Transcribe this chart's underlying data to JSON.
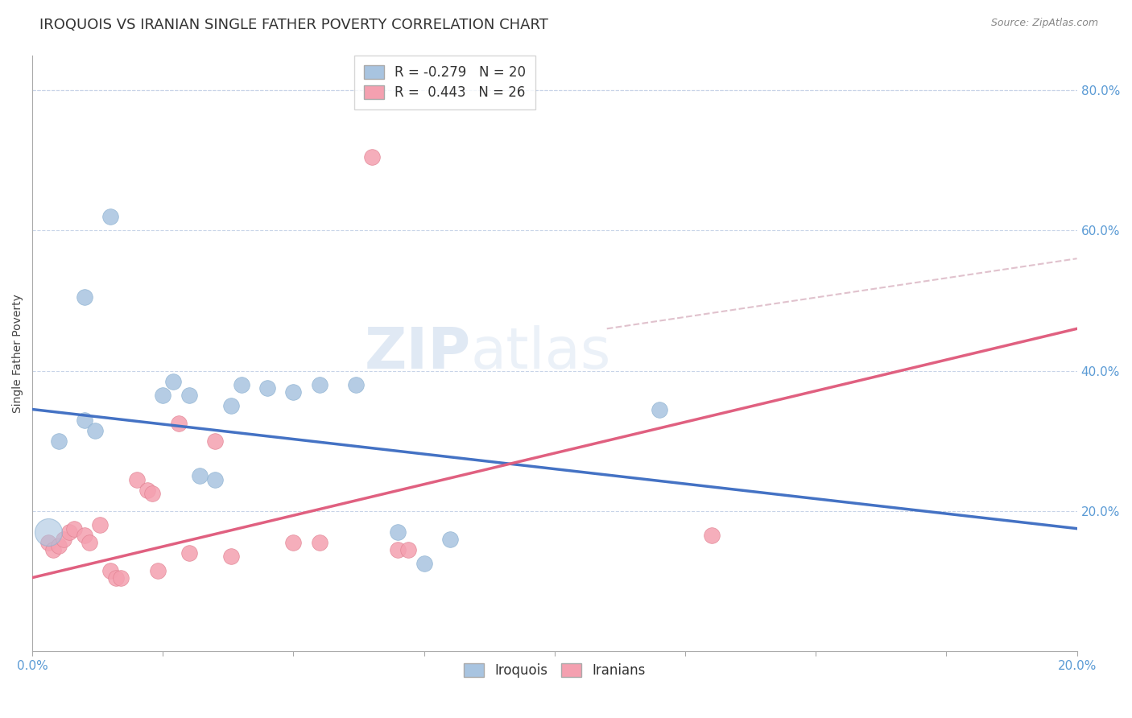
{
  "title": "IROQUOIS VS IRANIAN SINGLE FATHER POVERTY CORRELATION CHART",
  "source": "Source: ZipAtlas.com",
  "ylabel": "Single Father Poverty",
  "ylabel_right_ticks": [
    "80.0%",
    "60.0%",
    "40.0%",
    "20.0%"
  ],
  "ylabel_right_vals": [
    0.8,
    0.6,
    0.4,
    0.2
  ],
  "legend_iroquois": "R = -0.279   N = 20",
  "legend_iranians": "R =  0.443   N = 26",
  "iroquois_color": "#a8c4e0",
  "iranians_color": "#f4a0b0",
  "iroquois_line_color": "#4472c4",
  "iranians_line_color": "#e06080",
  "iranians_dash_color": "#d4a8b8",
  "iroquois_scatter": [
    [
      0.5,
      30.0
    ],
    [
      1.0,
      33.0
    ],
    [
      1.2,
      31.5
    ],
    [
      1.0,
      50.5
    ],
    [
      1.5,
      62.0
    ],
    [
      2.5,
      36.5
    ],
    [
      2.7,
      38.5
    ],
    [
      3.0,
      36.5
    ],
    [
      3.2,
      25.0
    ],
    [
      3.5,
      24.5
    ],
    [
      3.8,
      35.0
    ],
    [
      4.0,
      38.0
    ],
    [
      4.5,
      37.5
    ],
    [
      5.0,
      37.0
    ],
    [
      5.5,
      38.0
    ],
    [
      6.2,
      38.0
    ],
    [
      7.0,
      17.0
    ],
    [
      7.5,
      12.5
    ],
    [
      8.0,
      16.0
    ],
    [
      12.0,
      34.5
    ]
  ],
  "iranians_scatter": [
    [
      0.3,
      15.5
    ],
    [
      0.4,
      14.5
    ],
    [
      0.5,
      15.0
    ],
    [
      0.6,
      16.0
    ],
    [
      0.7,
      17.0
    ],
    [
      0.8,
      17.5
    ],
    [
      1.0,
      16.5
    ],
    [
      1.1,
      15.5
    ],
    [
      1.3,
      18.0
    ],
    [
      1.5,
      11.5
    ],
    [
      1.6,
      10.5
    ],
    [
      1.7,
      10.5
    ],
    [
      2.0,
      24.5
    ],
    [
      2.2,
      23.0
    ],
    [
      2.3,
      22.5
    ],
    [
      2.4,
      11.5
    ],
    [
      2.8,
      32.5
    ],
    [
      3.0,
      14.0
    ],
    [
      3.5,
      30.0
    ],
    [
      3.8,
      13.5
    ],
    [
      5.0,
      15.5
    ],
    [
      5.5,
      15.5
    ],
    [
      6.5,
      70.5
    ],
    [
      7.0,
      14.5
    ],
    [
      7.2,
      14.5
    ],
    [
      13.0,
      16.5
    ]
  ],
  "iroquois_line": [
    0.0,
    20.0,
    34.5,
    17.5
  ],
  "iranians_line": [
    0.0,
    20.0,
    10.5,
    46.0
  ],
  "iranians_dash_line": [
    11.0,
    20.0,
    46.0,
    56.0
  ],
  "x_range": [
    0.0,
    20.0
  ],
  "y_range": [
    0.0,
    85.0
  ],
  "background_color": "#ffffff",
  "grid_color": "#c8d4e8",
  "watermark_zip": "ZIP",
  "watermark_atlas": "atlas",
  "title_fontsize": 13,
  "axis_label_fontsize": 10,
  "tick_fontsize": 11
}
